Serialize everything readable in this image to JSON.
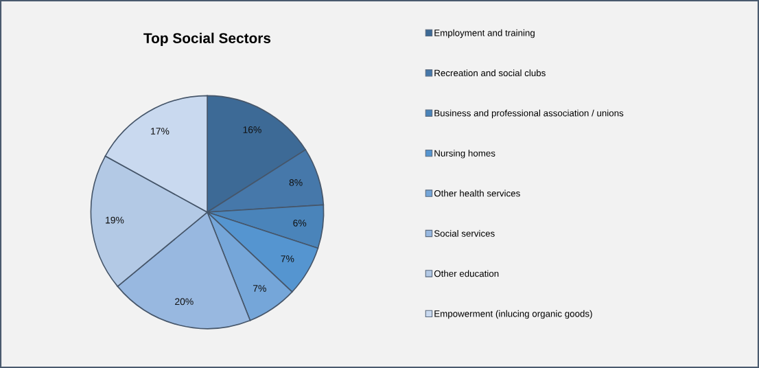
{
  "chart_data": {
    "type": "pie",
    "title": "Top Social Sectors",
    "categories": [
      "Employment and training",
      "Recreation and social clubs",
      "Business and professional association / unions",
      "Nursing homes",
      "Other health services",
      "Social services",
      "Other education",
      "Empowerment (inlucing organic goods)"
    ],
    "values": [
      16,
      8,
      6,
      7,
      7,
      20,
      19,
      17
    ],
    "value_labels": [
      "16%",
      "8%",
      "6%",
      "7%",
      "7%",
      "20%",
      "19%",
      "17%"
    ],
    "colors": [
      "#3d6a96",
      "#4678aa",
      "#4a84ba",
      "#5595d0",
      "#75a6d9",
      "#98b8e0",
      "#b3c9e5",
      "#c9d9ef"
    ],
    "legend": "right"
  }
}
